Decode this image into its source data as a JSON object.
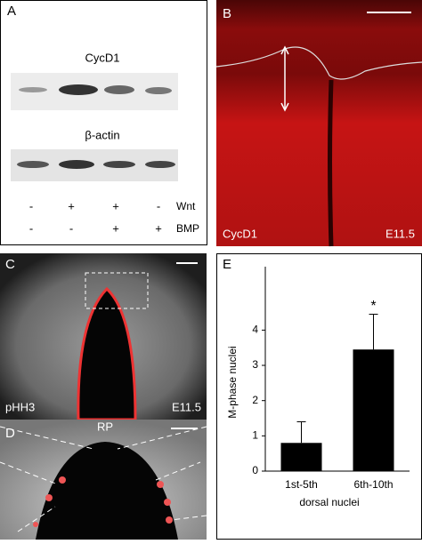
{
  "panels": {
    "A": {
      "label": "A",
      "blot1": "CycD1",
      "blot2": "β-actin",
      "wnt": {
        "label": "Wnt",
        "signs": [
          "-",
          "+",
          "+",
          "-"
        ]
      },
      "bmp": {
        "label": "BMP",
        "signs": [
          "-",
          "-",
          "+",
          "+"
        ]
      }
    },
    "B": {
      "label": "B",
      "stain": "CycD1",
      "stage": "E11.5"
    },
    "C": {
      "label": "C",
      "stain": "pHH3",
      "stage": "E11.5"
    },
    "D": {
      "label": "D",
      "region": "RP"
    },
    "E": {
      "label": "E"
    }
  },
  "chart_data": {
    "type": "bar",
    "ylabel": "M-phase nuclei",
    "xlabel": "dorsal nuclei",
    "categories": [
      "1st-5th",
      "6th-10th"
    ],
    "values": [
      0.8,
      3.45
    ],
    "errors": [
      0.6,
      1.0
    ],
    "color": "#000000",
    "ylim": [
      0,
      5.8
    ],
    "yticks": [
      0,
      1,
      2,
      3,
      4
    ],
    "annotation": "*"
  }
}
